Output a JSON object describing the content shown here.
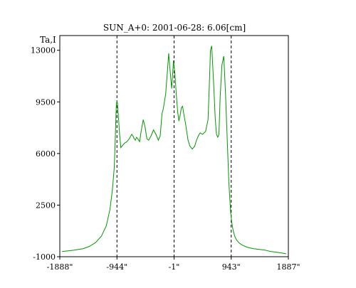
{
  "chart_data": {
    "type": "line",
    "title": "SUN_A+0: 2001-06-28: 6.06[cm]",
    "ylabel": "Ta,I",
    "xlabel": "",
    "xlim": [
      -1888,
      1887
    ],
    "ylim": [
      -1000,
      14000
    ],
    "x_ticks": [
      {
        "value": -1888,
        "label": "-1888\""
      },
      {
        "value": -944,
        "label": "-944\""
      },
      {
        "value": -1,
        "label": "-1\""
      },
      {
        "value": 943,
        "label": "943\""
      },
      {
        "value": 1887,
        "label": "1887\""
      }
    ],
    "y_ticks": [
      {
        "value": 13000,
        "label": "13000"
      },
      {
        "value": 9500,
        "label": "9500"
      },
      {
        "value": 6000,
        "label": "6000"
      },
      {
        "value": 2500,
        "label": "2500"
      },
      {
        "value": -1000,
        "label": "-1000"
      }
    ],
    "vlines": [
      -944,
      -1,
      943
    ],
    "grid": false,
    "series": [
      {
        "color": "#009900",
        "x": [
          -1850,
          -1750,
          -1650,
          -1500,
          -1400,
          -1300,
          -1200,
          -1120,
          -1060,
          -1020,
          -990,
          -975,
          -965,
          -955,
          -945,
          -935,
          -920,
          -900,
          -880,
          -860,
          -820,
          -780,
          -740,
          -700,
          -680,
          -660,
          -640,
          -620,
          -600,
          -570,
          -545,
          -510,
          -480,
          -450,
          -420,
          -380,
          -340,
          -300,
          -260,
          -230,
          -200,
          -180,
          -160,
          -140,
          -110,
          -90,
          -70,
          -40,
          -10,
          15,
          40,
          60,
          80,
          100,
          120,
          140,
          160,
          190,
          230,
          260,
          300,
          340,
          370,
          400,
          430,
          470,
          520,
          560,
          580,
          600,
          620,
          650,
          680,
          700,
          720,
          740,
          760,
          790,
          820,
          850,
          870,
          890,
          905,
          920,
          935,
          950,
          965,
          980,
          1000,
          1030,
          1070,
          1120,
          1200,
          1300,
          1400,
          1500,
          1600,
          1700,
          1850
        ],
        "y": [
          -650,
          -600,
          -550,
          -450,
          -300,
          -50,
          400,
          1100,
          2200,
          3500,
          5000,
          6500,
          8000,
          9200,
          9600,
          9400,
          8500,
          7300,
          6400,
          6500,
          6700,
          6800,
          7000,
          7300,
          7200,
          7000,
          6900,
          7100,
          7000,
          6800,
          7500,
          8300,
          7800,
          7000,
          6900,
          7200,
          7600,
          7300,
          6900,
          7200,
          8700,
          9000,
          9500,
          10000,
          11600,
          12800,
          11800,
          10400,
          12300,
          11300,
          9800,
          8800,
          8200,
          8600,
          9100,
          9200,
          8700,
          8000,
          6900,
          6500,
          6300,
          6500,
          6900,
          7200,
          7400,
          7300,
          7500,
          8300,
          10500,
          13000,
          13300,
          11000,
          8300,
          7300,
          7100,
          7300,
          9800,
          12000,
          12600,
          10000,
          7800,
          5600,
          4000,
          2900,
          2000,
          1400,
          1000,
          700,
          400,
          150,
          -50,
          -200,
          -350,
          -450,
          -500,
          -550,
          -650,
          -700,
          -800
        ]
      }
    ]
  }
}
